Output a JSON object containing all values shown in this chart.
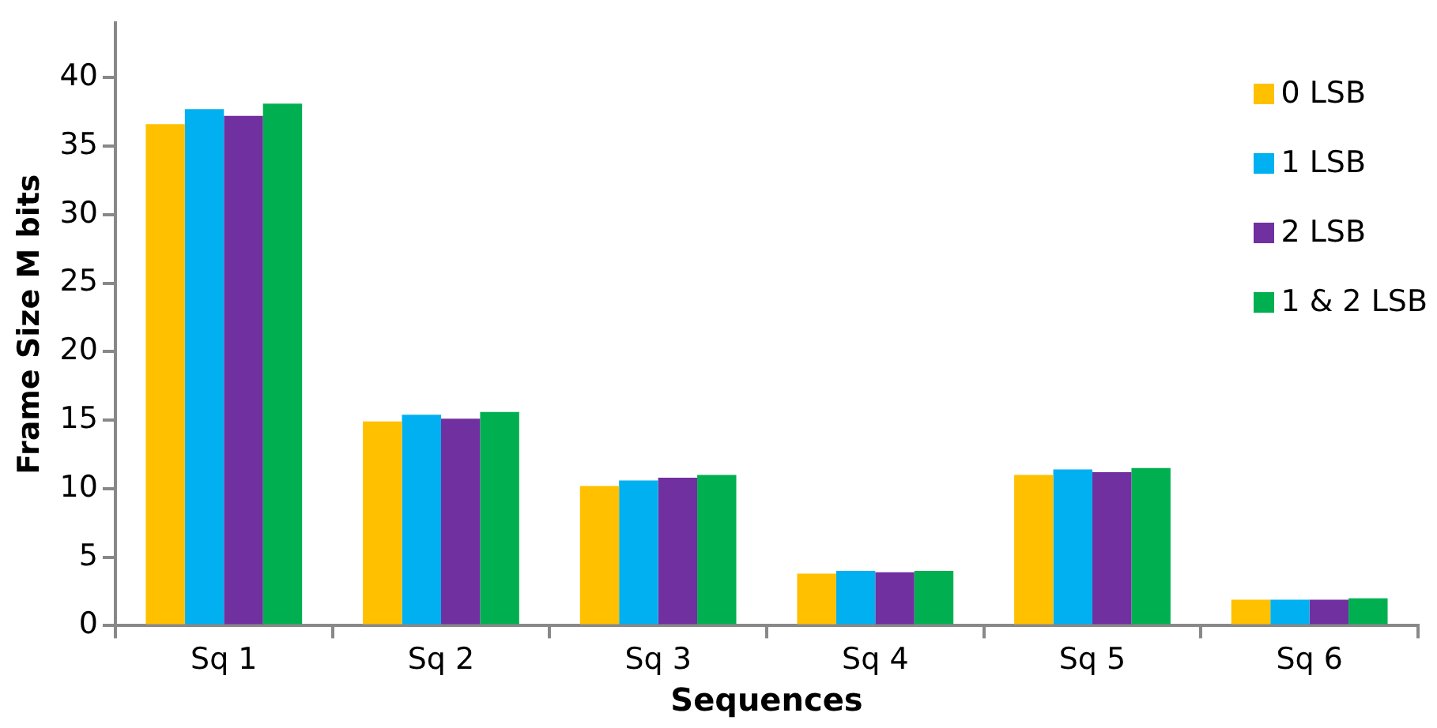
{
  "chart_data": {
    "type": "bar",
    "xlabel": "Sequences",
    "ylabel": "Frame Size M bits",
    "categories": [
      "Sq 1",
      "Sq 2",
      "Sq 3",
      "Sq 4",
      "Sq 5",
      "Sq 6"
    ],
    "series": [
      {
        "name": "0 LSB",
        "color": "#ffc000",
        "values": [
          36.6,
          14.9,
          10.2,
          3.8,
          11.0,
          1.9
        ]
      },
      {
        "name": "1 LSB",
        "color": "#00b0f0",
        "values": [
          37.7,
          15.4,
          10.6,
          4.0,
          11.4,
          1.9
        ]
      },
      {
        "name": "2 LSB",
        "color": "#7030a0",
        "values": [
          37.2,
          15.1,
          10.8,
          3.9,
          11.2,
          1.9
        ]
      },
      {
        "name": "1 & 2 LSB",
        "color": "#00b050",
        "values": [
          38.1,
          15.6,
          11.0,
          4.0,
          11.5,
          2.0
        ]
      }
    ],
    "ylim": [
      0,
      44
    ],
    "yticks": [
      0,
      5,
      10,
      15,
      20,
      25,
      30,
      35,
      40
    ],
    "grid": false,
    "legend": "right"
  }
}
